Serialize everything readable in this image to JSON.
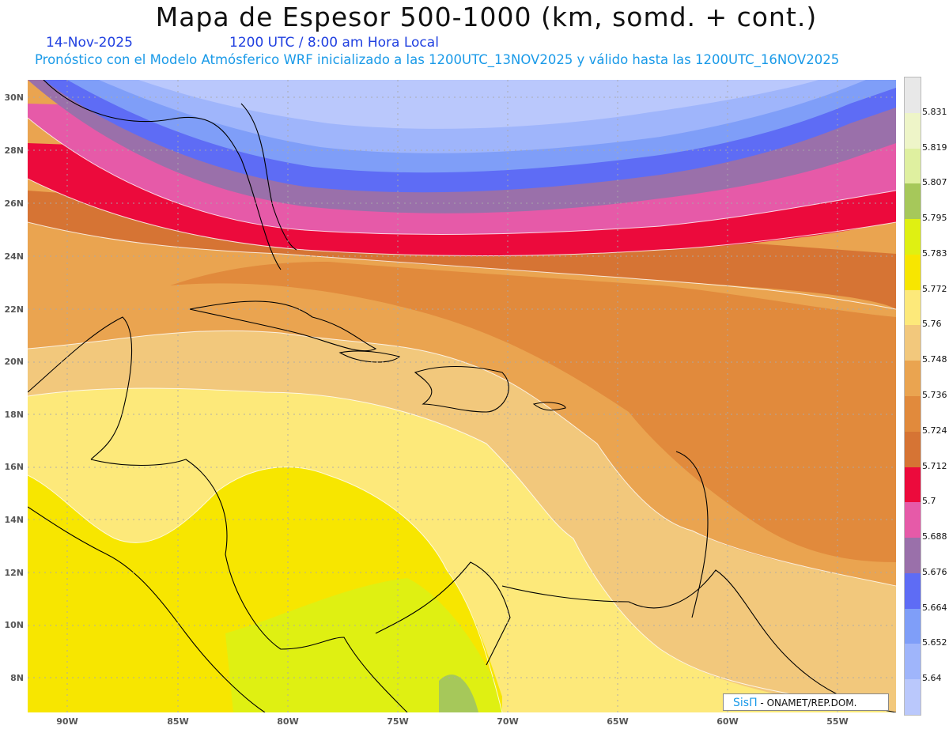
{
  "header": {
    "title": "Mapa de Espesor 500-1000 (km, somd. + cont.)",
    "date": "14-Nov-2025",
    "time": "1200 UTC / 8:00 am Hora Local",
    "forecast_note": "Pronóstico con el Modelo Atmósferico WRF inicializado a las 1200UTC_13NOV2025 y válido hasta las  1200UTC_16NOV2025"
  },
  "map": {
    "latitude_labels": [
      "30N",
      "28N",
      "26N",
      "24N",
      "22N",
      "20N",
      "18N",
      "16N",
      "14N",
      "12N",
      "10N",
      "8N"
    ],
    "longitude_labels": [
      "90W",
      "85W",
      "80W",
      "75W",
      "70W",
      "65W",
      "60W",
      "55W"
    ],
    "field": "thickness 500-1000 hPa",
    "grid": "dotted"
  },
  "colorbar": {
    "labels": [
      "5.831",
      "5.819",
      "5.807",
      "5.795",
      "5.783",
      "5.772",
      "5.76",
      "5.748",
      "5.736",
      "5.724",
      "5.712",
      "5.7",
      "5.688",
      "5.676",
      "5.664",
      "5.652",
      "5.64"
    ],
    "colors": [
      "#e8e8e8",
      "#eef5c8",
      "#dff0a0",
      "#a6c85a",
      "#dff012",
      "#f7e600",
      "#fde97a",
      "#f2c87c",
      "#eaa450",
      "#e18a3c",
      "#d67434",
      "#ec0a3c",
      "#e65aa8",
      "#9a70aa",
      "#5e6cf5",
      "#7f9ef8",
      "#9fb5fb",
      "#bac8fc"
    ]
  },
  "credit": {
    "brand": "SisΠ",
    "text": " - ONAMET/REP.DOM."
  }
}
